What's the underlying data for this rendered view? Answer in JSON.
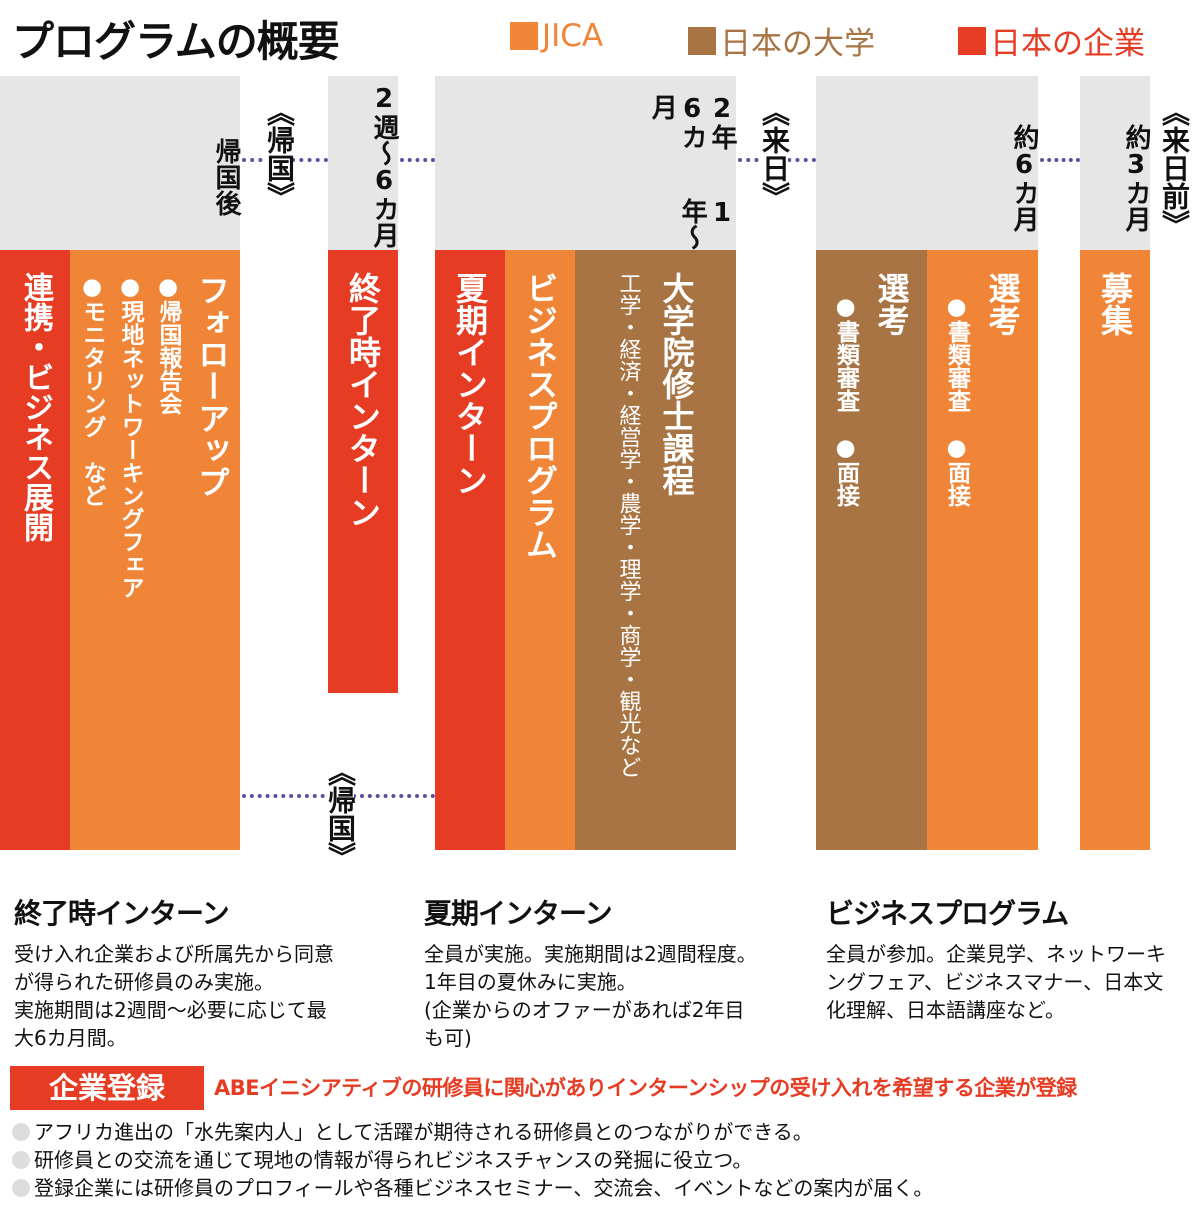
{
  "title": "プログラムの概要",
  "legend": [
    {
      "label": "JICA",
      "color": "#f08537"
    },
    {
      "label": "日本の大学",
      "color": "#a87443"
    },
    {
      "label": "日本の企業",
      "color": "#e63c23"
    }
  ],
  "colors": {
    "red": "#e63c23",
    "orange": "#f08537",
    "brown": "#a87443",
    "gray": "#e6e6e6",
    "dotted_line": "#5b4fa0"
  },
  "markers": {
    "return1": "《帰国》",
    "return2": "《帰国》",
    "arrival": "《来日》",
    "pre_arrival": "《来日前》"
  },
  "columns": {
    "after_return": {
      "header": "帰国後",
      "red": "連携・ビジネス展開",
      "orange_title": "フォローアップ",
      "orange_items": [
        "●帰国報告会",
        "●現地ネットワーキングフェア",
        "●モニタリング　など"
      ]
    },
    "final_intern": {
      "header": "2週〜6カ月",
      "red": "終了時インターン"
    },
    "study": {
      "header_lines": [
        "1年〜",
        "2年6カ月"
      ],
      "red": "夏期インターン",
      "orange": "ビジネスプログラム",
      "brown_title": "大学院修士課程",
      "brown_sub": "工学・経済・経営学・農学・理学・商学・観光など"
    },
    "selection": {
      "header": "約6カ月",
      "brown_title": "選考",
      "brown_items": "●書類審査　●面接",
      "orange_title": "選考",
      "orange_items": "●書類審査　●面接"
    },
    "recruit": {
      "header": "約3カ月",
      "orange": "募集"
    }
  },
  "sections": [
    {
      "title": "終了時インターン",
      "lines": [
        "受け入れ企業および所属先から同意",
        "が得られた研修員のみ実施。",
        "実施期間は2週間〜必要に応じて最",
        "大6カ月間。"
      ]
    },
    {
      "title": "夏期インターン",
      "lines": [
        "全員が実施。実施期間は2週間程度。",
        "1年目の夏休みに実施。",
        "(企業からのオファーがあれば2年目",
        "も可)"
      ]
    },
    {
      "title": "ビジネスプログラム",
      "lines": [
        "全員が参加。企業見学、ネットワーキ",
        "ングフェア、ビジネスマナー、日本文",
        "化理解、日本語講座など。"
      ]
    }
  ],
  "registration": {
    "badge": "企業登録",
    "headline": "ABEイニシアティブの研修員に関心がありインターンシップの受け入れを希望する企業が登録",
    "bullets": [
      "アフリカ進出の「水先案内人」として活躍が期待される研修員とのつながりができる。",
      "研修員との交流を通じて現地の情報が得られビジネスチャンスの発掘に役立つ。",
      "登録企業には研修員のプロフィールや各種ビジネスセミナー、交流会、イベントなどの案内が届く。"
    ]
  }
}
